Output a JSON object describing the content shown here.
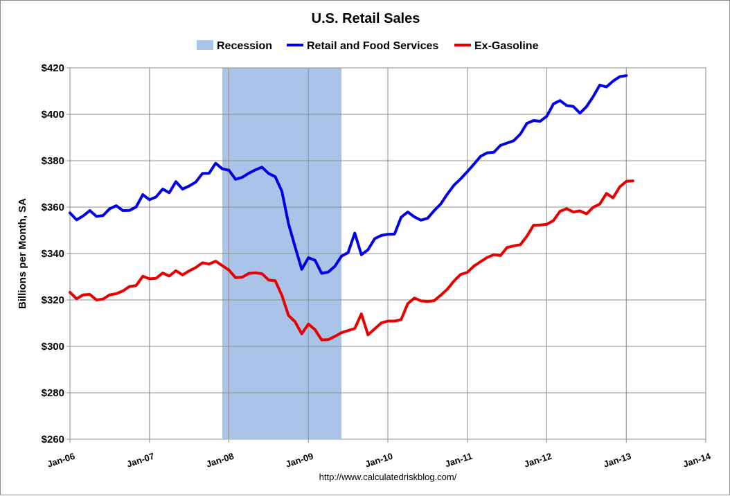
{
  "chart_data": {
    "type": "line",
    "title": "U.S. Retail Sales",
    "ylabel": "Billions per Month, SA",
    "xlabel": "",
    "source_text": "http://www.calculatedriskblog.com/",
    "legend_position": "top",
    "grid": true,
    "ylim": [
      260,
      420
    ],
    "yticks": [
      260,
      280,
      300,
      320,
      340,
      360,
      380,
      400,
      420
    ],
    "ytick_labels": [
      "$260",
      "$280",
      "$300",
      "$320",
      "$340",
      "$360",
      "$380",
      "$400",
      "$420"
    ],
    "xlim": [
      "Jan-06",
      "Jan-14"
    ],
    "xtick_labels": [
      "Jan-06",
      "Jan-07",
      "Jan-08",
      "Jan-09",
      "Jan-10",
      "Jan-11",
      "Jan-12",
      "Jan-13",
      "Jan-14"
    ],
    "recession": {
      "name": "Recession",
      "start": "Dec-07",
      "end": "Jun-09",
      "color": "#a9c4e8"
    },
    "series": [
      {
        "name": "Retail and Food Services",
        "color": "#0000e6",
        "start": "Jan-06",
        "values": [
          357.5,
          354.5,
          356.2,
          358.5,
          356.0,
          356.4,
          359.3,
          360.6,
          358.5,
          358.6,
          360.1,
          365.4,
          363.2,
          364.4,
          367.8,
          366.2,
          371.0,
          367.8,
          369.1,
          370.8,
          374.5,
          374.6,
          378.9,
          376.5,
          375.9,
          372.0,
          372.8,
          374.6,
          376.1,
          377.2,
          374.5,
          373.1,
          366.8,
          352.8,
          342.8,
          333.2,
          338.2,
          337.1,
          331.5,
          332.0,
          334.5,
          338.9,
          340.4,
          348.8,
          339.5,
          341.6,
          346.4,
          347.8,
          348.3,
          348.4,
          355.6,
          357.9,
          355.8,
          354.4,
          355.2,
          358.5,
          361.4,
          365.7,
          369.5,
          372.2,
          375.3,
          378.5,
          381.9,
          383.4,
          383.6,
          386.6,
          387.6,
          388.6,
          391.5,
          396.1,
          397.3,
          397.0,
          399.2,
          404.5,
          405.9,
          403.8,
          403.4,
          400.5,
          403.3,
          407.6,
          412.6,
          411.8,
          414.3,
          416.2,
          416.7
        ]
      },
      {
        "name": "Ex-Gasoline",
        "color": "#e60000",
        "start": "Jan-06",
        "values": [
          323.3,
          320.5,
          322.2,
          322.4,
          320.0,
          320.4,
          322.2,
          322.7,
          323.9,
          325.8,
          326.2,
          330.2,
          329.1,
          329.3,
          331.6,
          330.3,
          332.6,
          330.8,
          332.5,
          334.0,
          336.0,
          335.5,
          336.7,
          334.8,
          332.9,
          329.6,
          329.8,
          331.4,
          331.7,
          331.3,
          328.6,
          328.3,
          322.0,
          313.3,
          310.6,
          305.4,
          309.6,
          307.2,
          302.8,
          302.9,
          304.3,
          305.9,
          306.8,
          307.7,
          314.0,
          305.0,
          307.5,
          310.1,
          310.9,
          310.9,
          311.5,
          318.4,
          320.8,
          319.6,
          319.3,
          319.7,
          322.1,
          324.7,
          328.2,
          331.0,
          331.9,
          334.6,
          336.5,
          338.3,
          339.5,
          339.1,
          342.6,
          343.3,
          343.8,
          347.5,
          352.2,
          352.3,
          352.6,
          354.2,
          358.2,
          359.3,
          357.9,
          358.4,
          357.1,
          359.9,
          361.3,
          365.9,
          364.0,
          368.7,
          371.1,
          371.3
        ]
      }
    ]
  }
}
